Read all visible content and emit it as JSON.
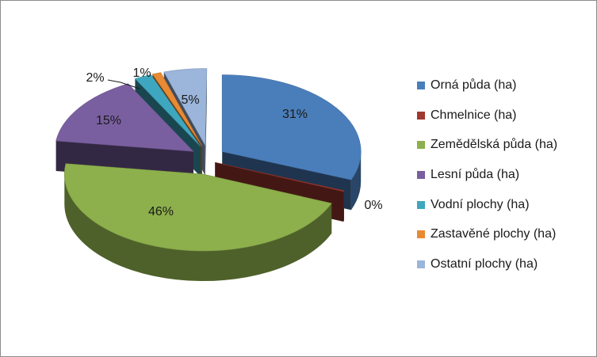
{
  "chart_data": {
    "type": "pie",
    "style": "3d-exploded",
    "title": "",
    "legend_position": "right",
    "series": [
      {
        "name": "",
        "slices": [
          {
            "label": "Orná půda (ha)",
            "value": 31,
            "display": "31%",
            "color": "#4a7ebb"
          },
          {
            "label": "Chmelnice (ha)",
            "value": 0,
            "display": "0%",
            "color": "#a0382f"
          },
          {
            "label": "Zemědělská půda (ha)",
            "value": 46,
            "display": "46%",
            "color": "#8db04c"
          },
          {
            "label": "Lesní půda (ha)",
            "value": 15,
            "display": "15%",
            "color": "#7a5fa0"
          },
          {
            "label": "Vodní plochy (ha)",
            "value": 2,
            "display": "2%",
            "color": "#3ea7bf"
          },
          {
            "label": "Zastavěné plochy (ha)",
            "value": 1,
            "display": "1%",
            "color": "#e88a33"
          },
          {
            "label": "Ostatní plochy (ha)",
            "value": 5,
            "display": "5%",
            "color": "#9bb5db"
          }
        ]
      }
    ]
  }
}
